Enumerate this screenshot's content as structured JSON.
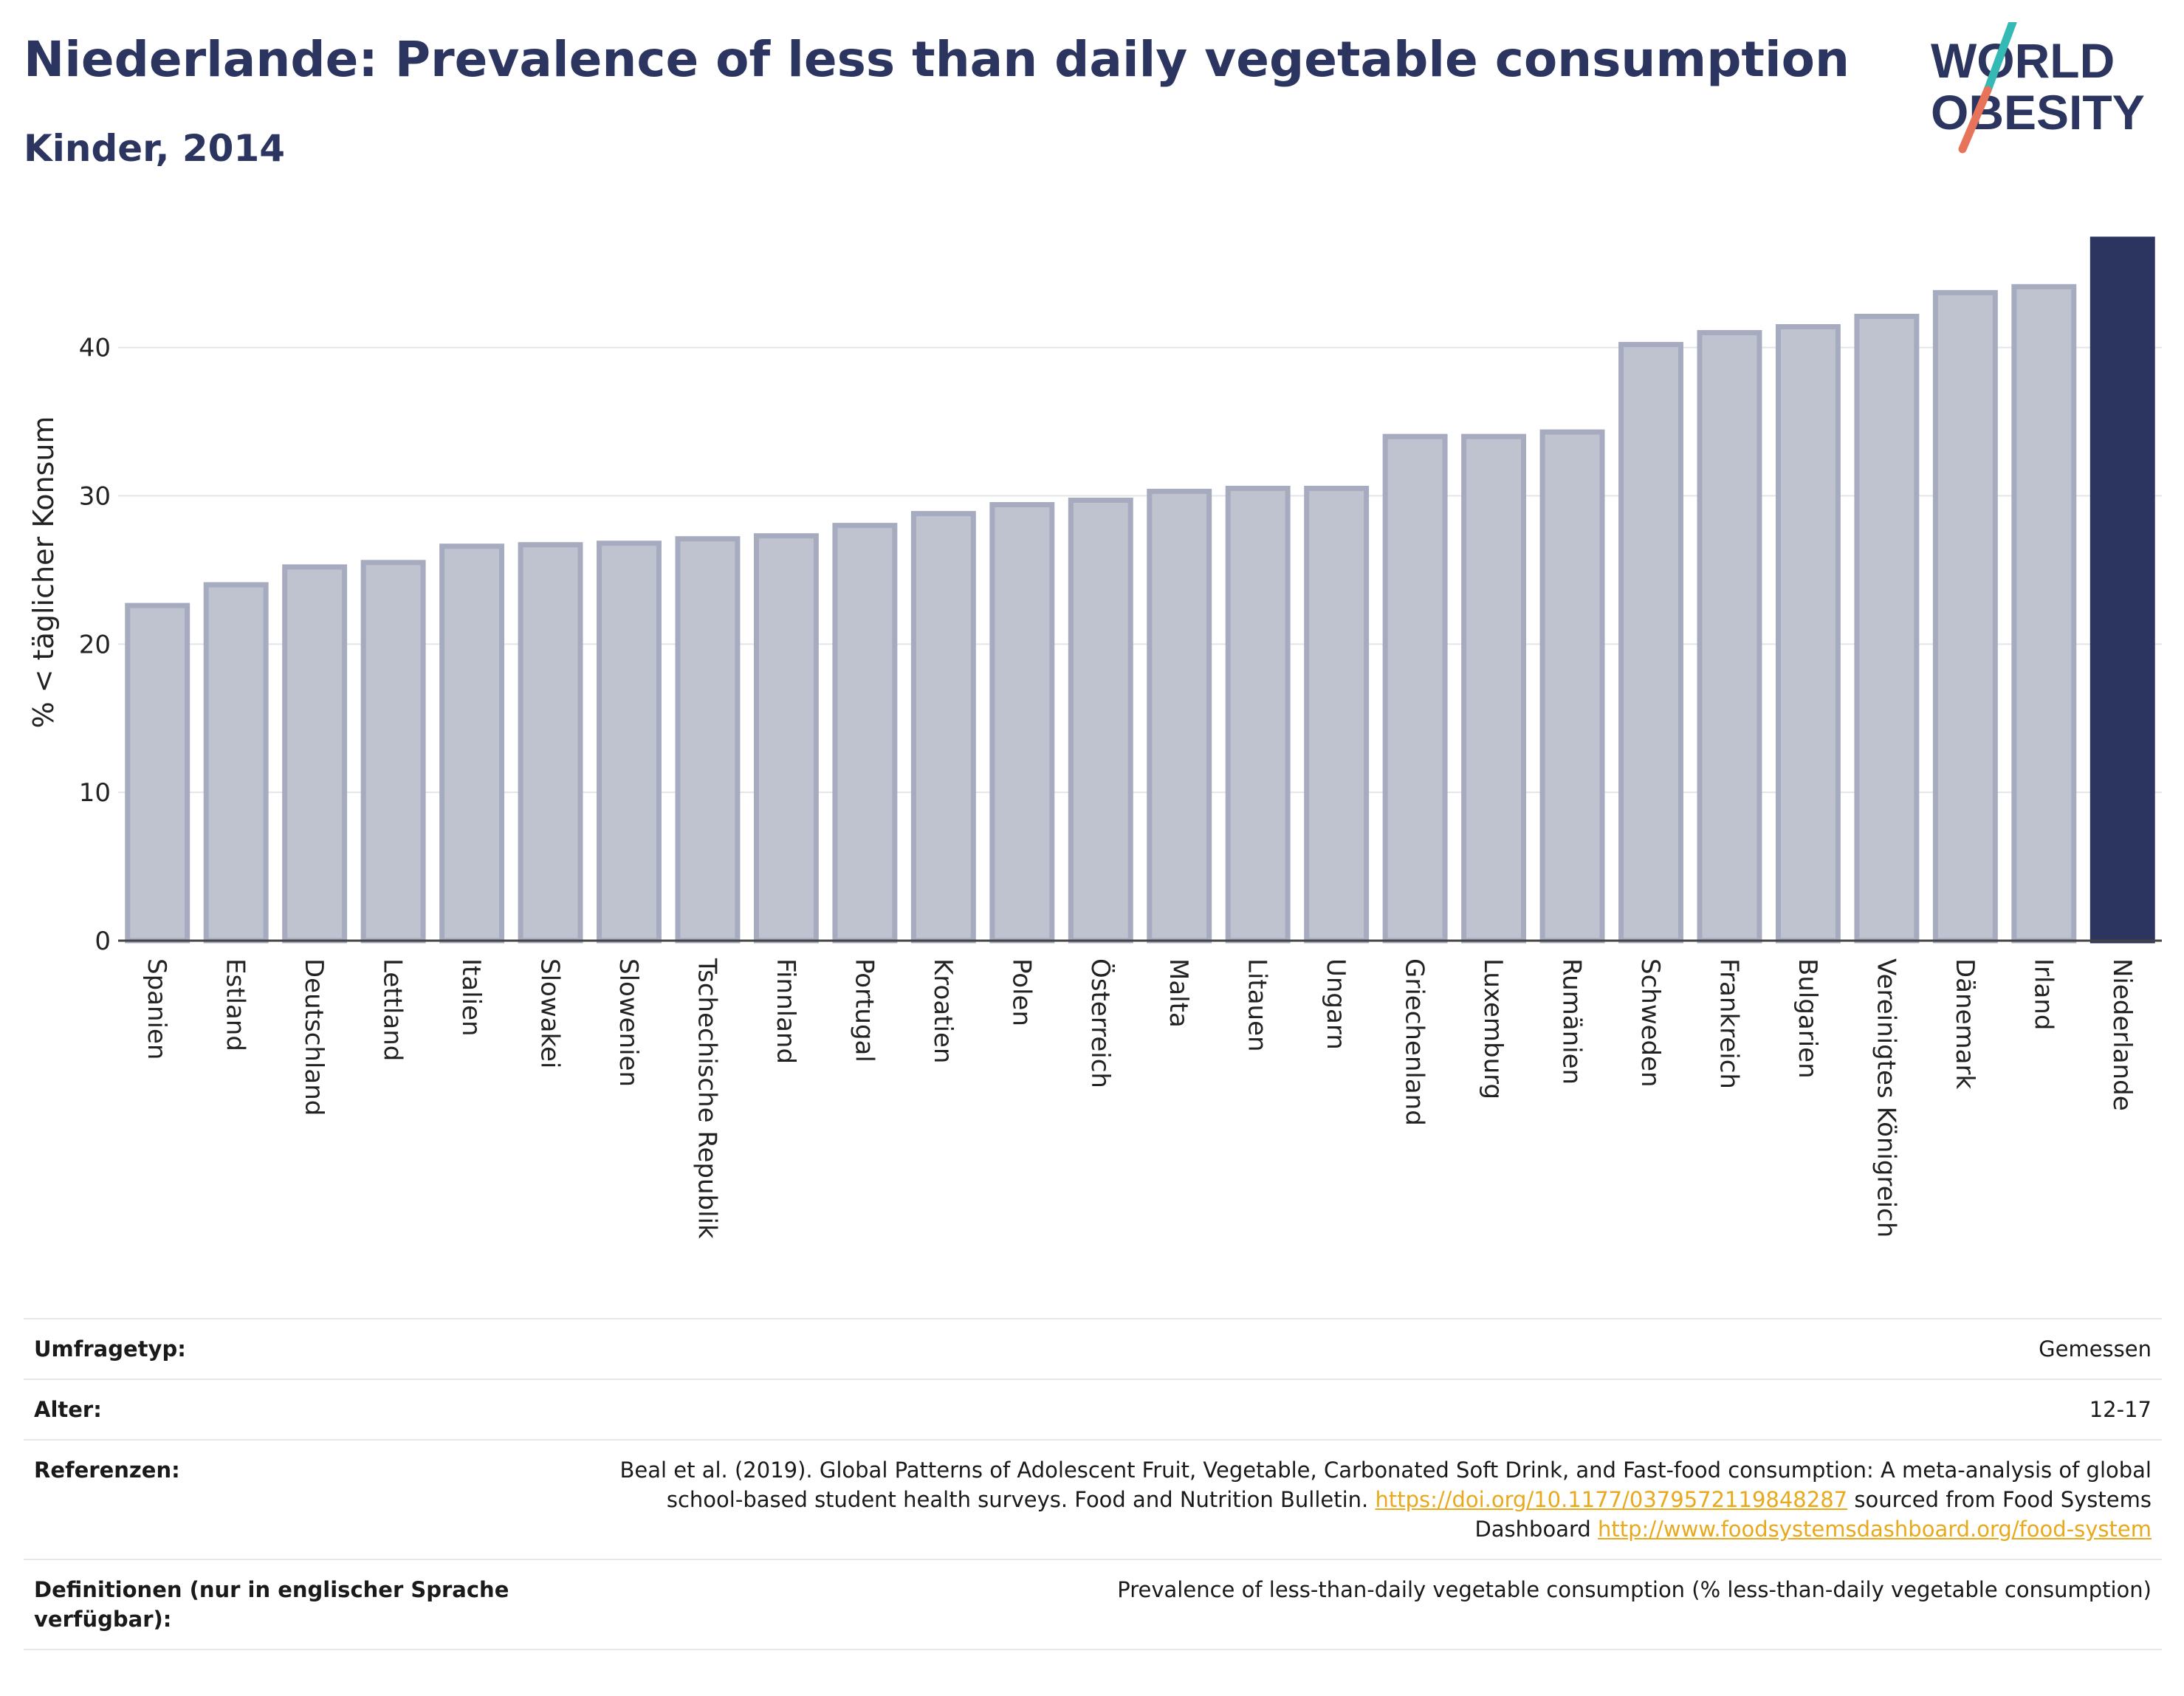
{
  "header": {
    "title": "Niederlande: Prevalence of less than daily vegetable consumption",
    "subtitle": "Kinder, 2014"
  },
  "logo": {
    "line1": "WORLD",
    "line2": "OBESITY",
    "slash_colors": [
      "#35b9b4",
      "#e8735b"
    ]
  },
  "colors": {
    "highlight": "#2b3560",
    "bar": "#bfc2cf",
    "bar_edge": "#a6abbf",
    "grid": "#e3e5ea",
    "link": "#e9a91c"
  },
  "chart_data": {
    "type": "bar",
    "title": "Niederlande: Prevalence of less than daily vegetable consumption",
    "subtitle": "Kinder, 2014",
    "ylabel": "% < täglicher Konsum",
    "xlabel": "",
    "ylim": [
      0,
      47.5
    ],
    "yticks": [
      0,
      10,
      20,
      30,
      40
    ],
    "grid": true,
    "highlight": "Niederlande",
    "categories": [
      "Spanien",
      "Estland",
      "Deutschland",
      "Lettland",
      "Italien",
      "Slowakei",
      "Slowenien",
      "Tschechische Republik",
      "Finnland",
      "Portugal",
      "Kroatien",
      "Polen",
      "Österreich",
      "Malta",
      "Litauen",
      "Ungarn",
      "Griechenland",
      "Luxemburg",
      "Rumänien",
      "Schweden",
      "Frankreich",
      "Bulgarien",
      "Vereinigtes Königreich",
      "Dänemark",
      "Irland",
      "Niederlande"
    ],
    "values": [
      22.6,
      24.0,
      25.2,
      25.5,
      26.6,
      26.7,
      26.8,
      27.1,
      27.3,
      28.0,
      28.8,
      29.4,
      29.7,
      30.3,
      30.5,
      30.5,
      34.0,
      34.0,
      34.3,
      40.2,
      41.0,
      41.4,
      42.1,
      43.7,
      44.1,
      47.3
    ]
  },
  "meta": {
    "survey_label": "Umfragetyp:",
    "survey_value": "Gemessen",
    "age_label": "Alter:",
    "age_value": "12-17",
    "ref_label": "Referenzen:",
    "ref_text1": "Beal et al. (2019). Global Patterns of Adolescent Fruit, Vegetable, Carbonated Soft Drink, and Fast-food consumption: A meta-analysis of global school-based student health surveys. Food and Nutrition Bulletin.",
    "ref_link1": "https://doi.org/10.1177/0379572119848287",
    "ref_text2": "sourced from Food Systems Dashboard",
    "ref_link2": "http://www.foodsystemsdashboard.org/food-system",
    "def_label": "Definitionen (nur in englischer Sprache verfügbar):",
    "def_value": "Prevalence of less-than-daily vegetable consumption (% less-than-daily vegetable consumption)"
  }
}
